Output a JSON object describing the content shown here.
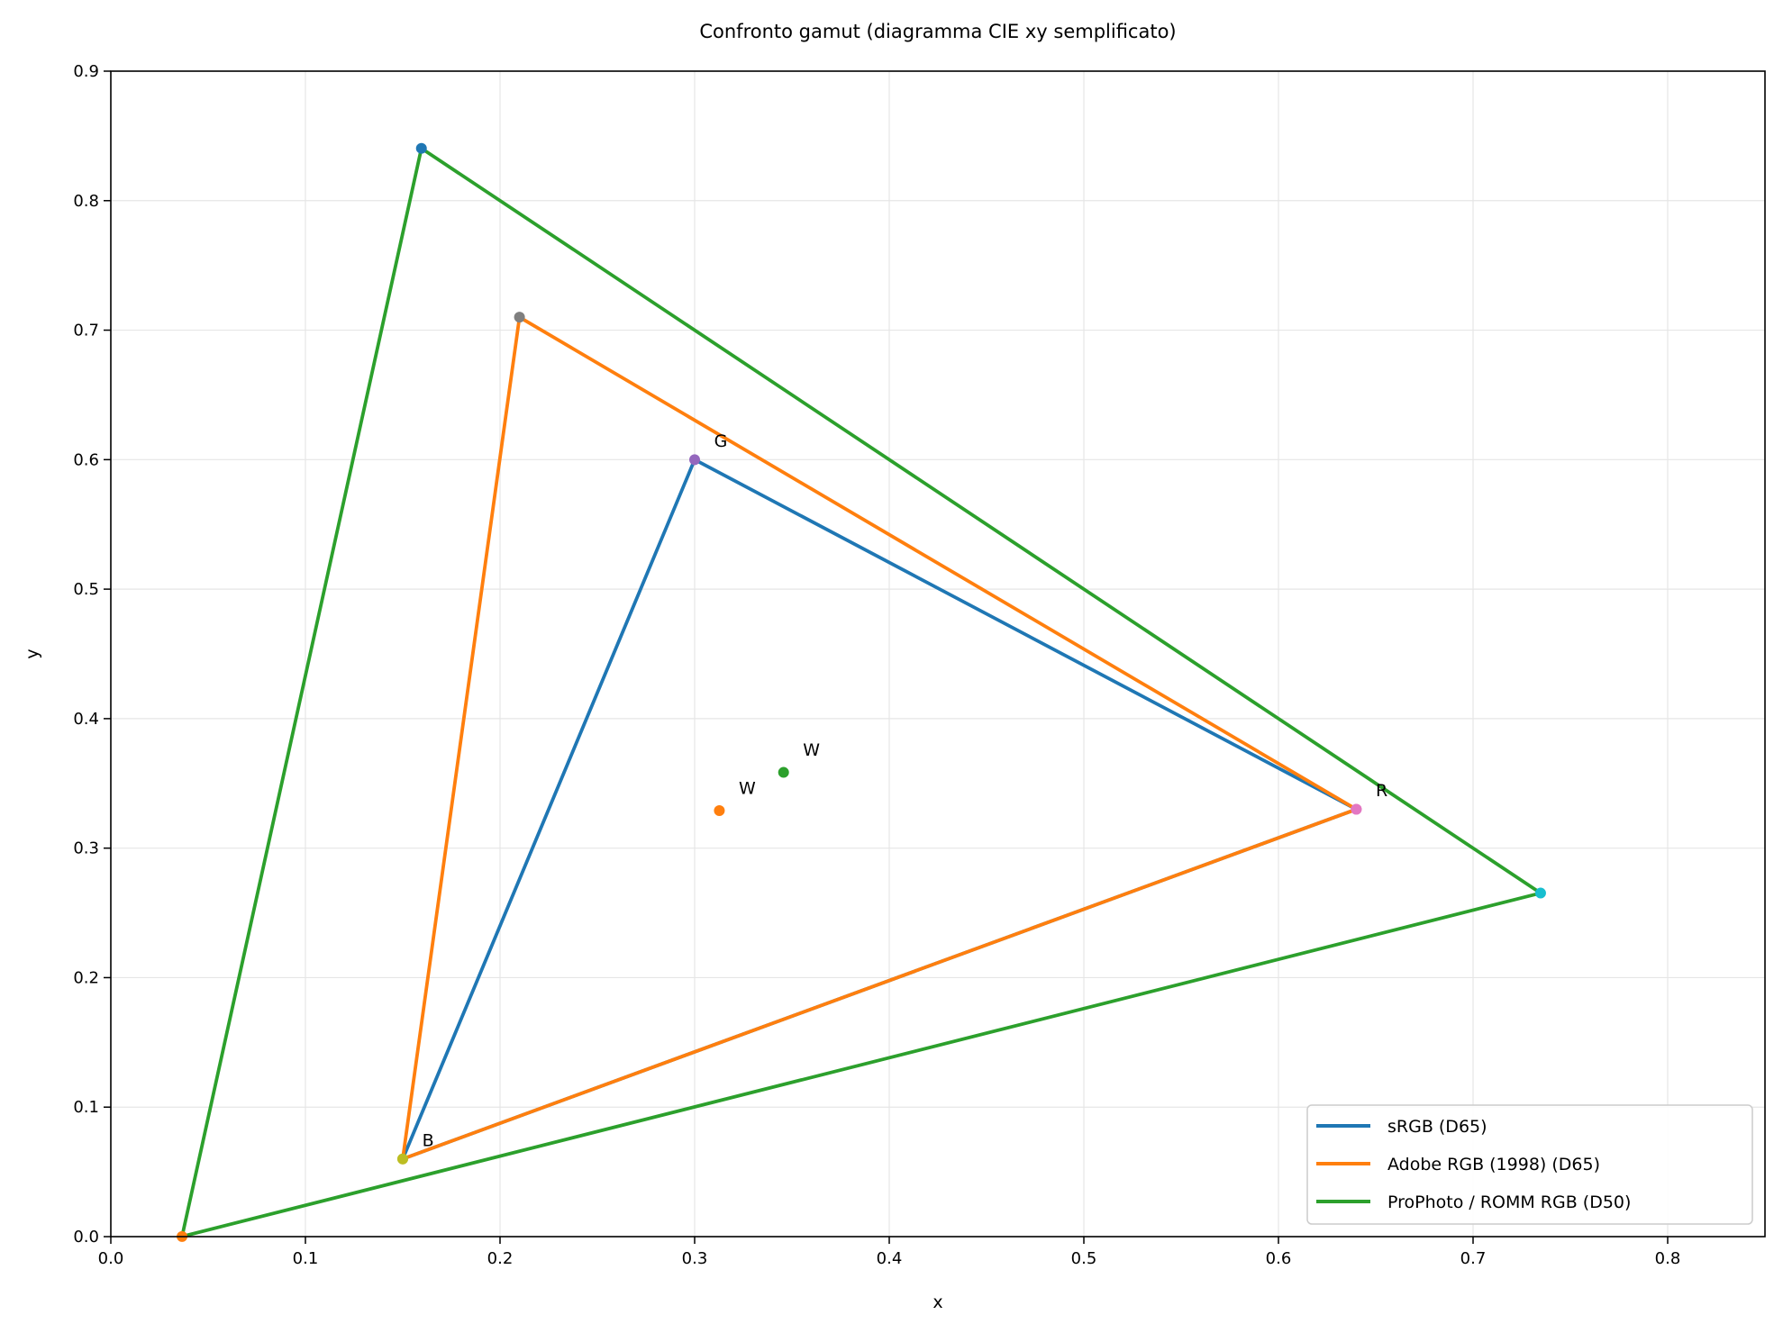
{
  "chart_data": {
    "type": "line",
    "title": "Confronto gamut (diagramma CIE xy semplificato)",
    "xlabel": "x",
    "ylabel": "y",
    "xlim": [
      0,
      0.85
    ],
    "ylim": [
      0,
      0.9
    ],
    "xticks": [
      "0.0",
      "0.1",
      "0.2",
      "0.3",
      "0.4",
      "0.5",
      "0.6",
      "0.7",
      "0.8"
    ],
    "yticks": [
      "0.0",
      "0.1",
      "0.2",
      "0.3",
      "0.4",
      "0.5",
      "0.6",
      "0.7",
      "0.8",
      "0.9"
    ],
    "grid": true,
    "legend_position": "bottom-right",
    "series": [
      {
        "name": "sRGB (D65)",
        "color": "#1f77b4",
        "points": [
          [
            0.64,
            0.33
          ],
          [
            0.3,
            0.6
          ],
          [
            0.15,
            0.06
          ]
        ],
        "vertex_colors": [
          "#e377c2",
          "#9467bd",
          "#bcbd22"
        ]
      },
      {
        "name": "Adobe RGB (1998) (D65)",
        "color": "#ff7f0e",
        "points": [
          [
            0.64,
            0.33
          ],
          [
            0.21,
            0.71
          ],
          [
            0.15,
            0.06
          ]
        ],
        "vertex_colors": [
          "#e377c2",
          "#7f7f7f",
          "#bcbd22"
        ]
      },
      {
        "name": "ProPhoto / ROMM RGB (D50)",
        "color": "#2ca02c",
        "points": [
          [
            0.7347,
            0.2653
          ],
          [
            0.1596,
            0.8404
          ],
          [
            0.0366,
            0.0001
          ]
        ],
        "vertex_colors": [
          "#17becf",
          "#1f77b4",
          "#ff7f0e"
        ]
      }
    ],
    "white_points": [
      {
        "x": 0.3127,
        "y": 0.329,
        "color": "#ff7f0e",
        "label": "W"
      },
      {
        "x": 0.3457,
        "y": 0.3585,
        "color": "#2ca02c",
        "label": "W"
      }
    ],
    "vertex_labels": [
      {
        "text": "R",
        "x": 0.64,
        "y": 0.33
      },
      {
        "text": "G",
        "x": 0.3,
        "y": 0.6
      },
      {
        "text": "B",
        "x": 0.15,
        "y": 0.06
      }
    ]
  }
}
